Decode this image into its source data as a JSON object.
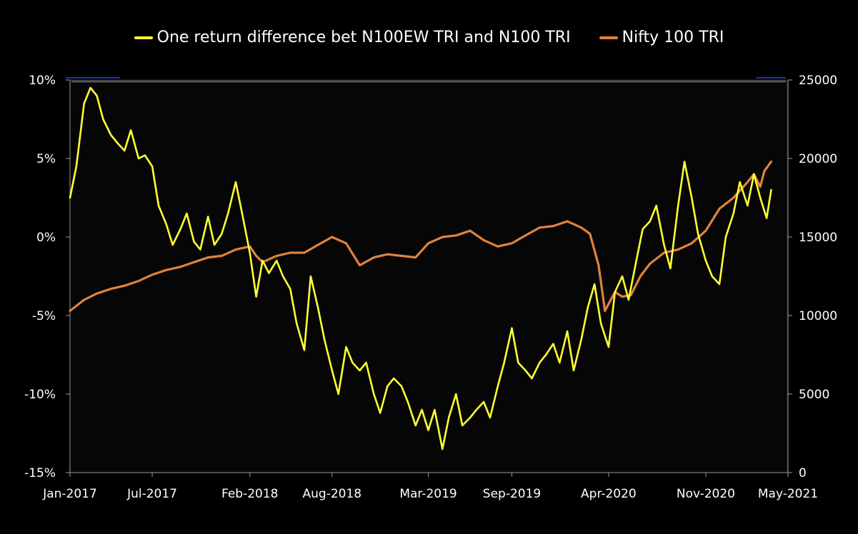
{
  "chart_data": {
    "type": "line",
    "title": "",
    "legend_position": "top",
    "grid": false,
    "x_tick_labels": [
      "Jan-2017",
      "Jul-2017",
      "Feb-2018",
      "Aug-2018",
      "Mar-2019",
      "Sep-2019",
      "Apr-2020",
      "Nov-2020",
      "May-2021"
    ],
    "x_range": [
      "2017-01-01",
      "2021-05-01"
    ],
    "left_axis": {
      "ticks": [
        "10%",
        "5%",
        "0%",
        "-5%",
        "-10%",
        "-15%"
      ],
      "range": [
        -15,
        10
      ],
      "unit": "%"
    },
    "right_axis": {
      "ticks": [
        "25000",
        "20000",
        "15000",
        "10000",
        "5000",
        "0"
      ],
      "range": [
        0,
        25000
      ]
    },
    "series": [
      {
        "name": "One return difference bet N100EW TRI and N100 TRI",
        "axis": "left",
        "color": "#ffff33",
        "points": [
          [
            "2017-01-01",
            2.5
          ],
          [
            "2017-01-15",
            4.5
          ],
          [
            "2017-02-01",
            8.5
          ],
          [
            "2017-02-15",
            9.5
          ],
          [
            "2017-03-01",
            9.0
          ],
          [
            "2017-03-15",
            7.5
          ],
          [
            "2017-04-01",
            6.5
          ],
          [
            "2017-04-15",
            6.0
          ],
          [
            "2017-05-01",
            5.5
          ],
          [
            "2017-05-15",
            6.8
          ],
          [
            "2017-06-01",
            5.0
          ],
          [
            "2017-06-15",
            5.2
          ],
          [
            "2017-07-01",
            4.5
          ],
          [
            "2017-07-15",
            2.0
          ],
          [
            "2017-08-01",
            0.8
          ],
          [
            "2017-08-15",
            -0.5
          ],
          [
            "2017-09-01",
            0.5
          ],
          [
            "2017-09-15",
            1.5
          ],
          [
            "2017-10-01",
            -0.3
          ],
          [
            "2017-10-15",
            -0.8
          ],
          [
            "2017-11-01",
            1.3
          ],
          [
            "2017-11-15",
            -0.5
          ],
          [
            "2017-12-01",
            0.2
          ],
          [
            "2017-12-15",
            1.5
          ],
          [
            "2018-01-01",
            3.5
          ],
          [
            "2018-01-15",
            1.5
          ],
          [
            "2018-02-01",
            -1.0
          ],
          [
            "2018-02-15",
            -3.8
          ],
          [
            "2018-03-01",
            -1.5
          ],
          [
            "2018-03-15",
            -2.3
          ],
          [
            "2018-04-01",
            -1.5
          ],
          [
            "2018-04-15",
            -2.5
          ],
          [
            "2018-05-01",
            -3.3
          ],
          [
            "2018-05-15",
            -5.5
          ],
          [
            "2018-06-01",
            -7.2
          ],
          [
            "2018-06-15",
            -2.5
          ],
          [
            "2018-07-01",
            -4.5
          ],
          [
            "2018-07-15",
            -6.5
          ],
          [
            "2018-08-01",
            -8.5
          ],
          [
            "2018-08-15",
            -10.0
          ],
          [
            "2018-09-01",
            -7.0
          ],
          [
            "2018-09-15",
            -8.0
          ],
          [
            "2018-10-01",
            -8.5
          ],
          [
            "2018-10-15",
            -8.0
          ],
          [
            "2018-11-01",
            -10.0
          ],
          [
            "2018-11-15",
            -11.2
          ],
          [
            "2018-12-01",
            -9.5
          ],
          [
            "2018-12-15",
            -9.0
          ],
          [
            "2019-01-01",
            -9.5
          ],
          [
            "2019-01-15",
            -10.5
          ],
          [
            "2019-02-01",
            -12.0
          ],
          [
            "2019-02-15",
            -11.0
          ],
          [
            "2019-03-01",
            -12.3
          ],
          [
            "2019-03-15",
            -11.0
          ],
          [
            "2019-04-01",
            -13.5
          ],
          [
            "2019-04-15",
            -11.5
          ],
          [
            "2019-05-01",
            -10.0
          ],
          [
            "2019-05-15",
            -12.0
          ],
          [
            "2019-06-01",
            -11.5
          ],
          [
            "2019-06-15",
            -11.0
          ],
          [
            "2019-07-01",
            -10.5
          ],
          [
            "2019-07-15",
            -11.5
          ],
          [
            "2019-08-01",
            -9.5
          ],
          [
            "2019-08-15",
            -8.0
          ],
          [
            "2019-09-01",
            -5.8
          ],
          [
            "2019-09-15",
            -8.0
          ],
          [
            "2019-10-01",
            -8.5
          ],
          [
            "2019-10-15",
            -9.0
          ],
          [
            "2019-11-01",
            -8.0
          ],
          [
            "2019-11-15",
            -7.5
          ],
          [
            "2019-12-01",
            -6.8
          ],
          [
            "2019-12-15",
            -8.0
          ],
          [
            "2020-01-01",
            -6.0
          ],
          [
            "2020-01-15",
            -8.5
          ],
          [
            "2020-02-01",
            -6.5
          ],
          [
            "2020-02-15",
            -4.5
          ],
          [
            "2020-03-01",
            -3.0
          ],
          [
            "2020-03-15",
            -5.5
          ],
          [
            "2020-04-01",
            -7.0
          ],
          [
            "2020-04-15",
            -3.5
          ],
          [
            "2020-05-01",
            -2.5
          ],
          [
            "2020-05-15",
            -4.0
          ],
          [
            "2020-06-01",
            -1.5
          ],
          [
            "2020-06-15",
            0.5
          ],
          [
            "2020-07-01",
            1.0
          ],
          [
            "2020-07-15",
            2.0
          ],
          [
            "2020-08-01",
            -0.5
          ],
          [
            "2020-08-15",
            -2.0
          ],
          [
            "2020-09-01",
            2.0
          ],
          [
            "2020-09-15",
            4.8
          ],
          [
            "2020-10-01",
            2.5
          ],
          [
            "2020-10-15",
            0.2
          ],
          [
            "2020-11-01",
            -1.5
          ],
          [
            "2020-11-15",
            -2.5
          ],
          [
            "2020-12-01",
            -3.0
          ],
          [
            "2020-12-15",
            0.0
          ],
          [
            "2021-01-01",
            1.5
          ],
          [
            "2021-01-15",
            3.5
          ],
          [
            "2021-02-01",
            2.0
          ],
          [
            "2021-02-15",
            4.0
          ],
          [
            "2021-03-01",
            2.5
          ],
          [
            "2021-03-15",
            1.2
          ],
          [
            "2021-03-25",
            3.0
          ]
        ]
      },
      {
        "name": "Nifty 100 TRI",
        "axis": "right",
        "color": "#e0823c",
        "points": [
          [
            "2017-01-01",
            10300
          ],
          [
            "2017-02-01",
            11000
          ],
          [
            "2017-03-01",
            11400
          ],
          [
            "2017-04-01",
            11700
          ],
          [
            "2017-05-01",
            11900
          ],
          [
            "2017-06-01",
            12200
          ],
          [
            "2017-07-01",
            12600
          ],
          [
            "2017-08-01",
            12900
          ],
          [
            "2017-09-01",
            13100
          ],
          [
            "2017-10-01",
            13400
          ],
          [
            "2017-11-01",
            13700
          ],
          [
            "2017-12-01",
            13800
          ],
          [
            "2018-01-01",
            14200
          ],
          [
            "2018-02-01",
            14400
          ],
          [
            "2018-02-15",
            13800
          ],
          [
            "2018-03-01",
            13400
          ],
          [
            "2018-04-01",
            13800
          ],
          [
            "2018-05-01",
            14000
          ],
          [
            "2018-06-01",
            14000
          ],
          [
            "2018-07-01",
            14500
          ],
          [
            "2018-08-01",
            15000
          ],
          [
            "2018-09-01",
            14600
          ],
          [
            "2018-10-01",
            13200
          ],
          [
            "2018-11-01",
            13700
          ],
          [
            "2018-12-01",
            13900
          ],
          [
            "2019-01-01",
            13800
          ],
          [
            "2019-02-01",
            13700
          ],
          [
            "2019-03-01",
            14600
          ],
          [
            "2019-04-01",
            15000
          ],
          [
            "2019-05-01",
            15100
          ],
          [
            "2019-06-01",
            15400
          ],
          [
            "2019-07-01",
            14800
          ],
          [
            "2019-08-01",
            14400
          ],
          [
            "2019-09-01",
            14600
          ],
          [
            "2019-10-01",
            15100
          ],
          [
            "2019-11-01",
            15600
          ],
          [
            "2019-12-01",
            15700
          ],
          [
            "2020-01-01",
            16000
          ],
          [
            "2020-02-01",
            15600
          ],
          [
            "2020-02-20",
            15200
          ],
          [
            "2020-03-10",
            13200
          ],
          [
            "2020-03-24",
            10300
          ],
          [
            "2020-04-15",
            11500
          ],
          [
            "2020-05-01",
            11200
          ],
          [
            "2020-05-20",
            11300
          ],
          [
            "2020-06-10",
            12500
          ],
          [
            "2020-07-01",
            13300
          ],
          [
            "2020-08-01",
            14000
          ],
          [
            "2020-09-01",
            14200
          ],
          [
            "2020-10-01",
            14600
          ],
          [
            "2020-11-01",
            15400
          ],
          [
            "2020-12-01",
            16800
          ],
          [
            "2021-01-01",
            17500
          ],
          [
            "2021-02-01",
            18500
          ],
          [
            "2021-02-15",
            19000
          ],
          [
            "2021-03-01",
            18200
          ],
          [
            "2021-03-10",
            19200
          ],
          [
            "2021-03-25",
            19800
          ]
        ]
      }
    ]
  }
}
